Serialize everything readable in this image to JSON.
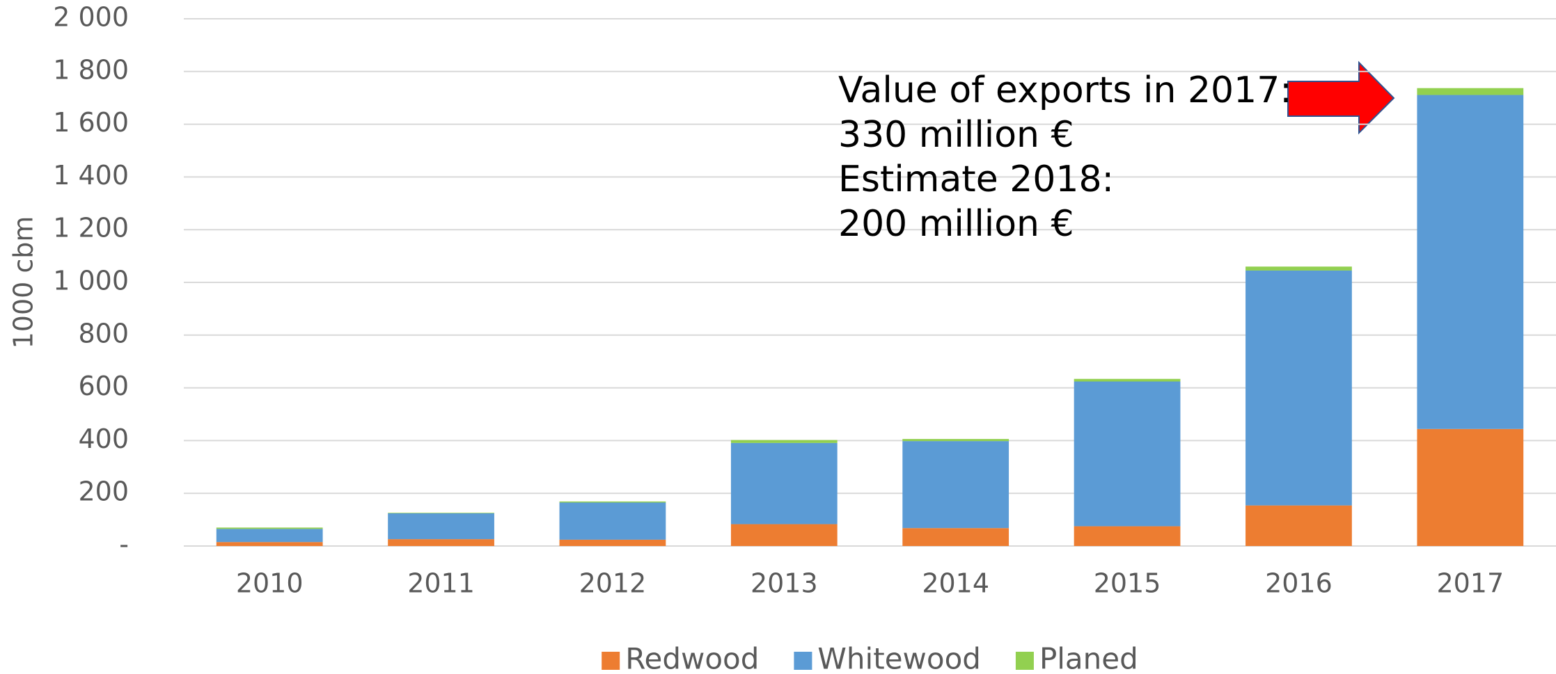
{
  "chart_data": {
    "type": "stacked_bar",
    "y_label": "1000 cbm",
    "categories": [
      "2010",
      "2011",
      "2012",
      "2013",
      "2014",
      "2015",
      "2016",
      "2017"
    ],
    "series": [
      {
        "name": "Redwood",
        "color": "#ed7d31",
        "values": [
          15,
          26,
          24,
          83,
          68,
          75,
          154,
          444
        ]
      },
      {
        "name": "Whitewood",
        "color": "#5b9bd5",
        "values": [
          50,
          98,
          141,
          308,
          330,
          549,
          891,
          1267
        ]
      },
      {
        "name": "Planed",
        "color": "#92d050",
        "values": [
          5,
          2,
          4,
          11,
          8,
          10,
          15,
          26
        ]
      }
    ],
    "ylim": [
      0,
      2000
    ],
    "yticks": [
      {
        "value": 0,
        "label": "-"
      },
      200,
      400,
      600,
      800,
      {
        "value": 1000,
        "label": "1 000"
      },
      {
        "value": 1200,
        "label": "1 200"
      },
      {
        "value": 1400,
        "label": "1 400"
      },
      {
        "value": 1600,
        "label": "1 600"
      },
      {
        "value": 1800,
        "label": "1 800"
      },
      {
        "value": 2000,
        "label": "2 000"
      }
    ],
    "grid": true,
    "legend": "bottom",
    "annotation": [
      "Value of exports in 2017:",
      "330 million €",
      "Estimate 2018:",
      "200 million €"
    ]
  }
}
